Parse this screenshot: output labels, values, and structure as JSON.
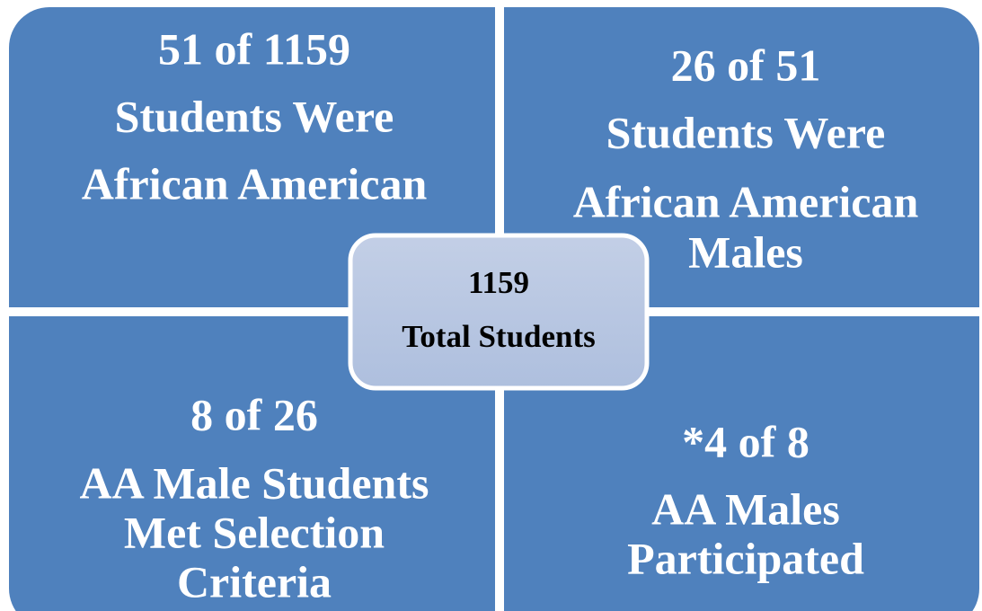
{
  "quadrants": [
    {
      "lines": [
        "51 of 1159",
        "Students Were",
        "African American"
      ]
    },
    {
      "lines": [
        "26 of 51",
        "Students Were",
        "African American",
        "Males"
      ]
    },
    {
      "lines": [
        "8 of 26",
        "AA Male Students",
        "Met Selection",
        "Criteria"
      ]
    },
    {
      "lines": [
        "*4 of 8",
        "AA Males",
        "Participated"
      ]
    }
  ],
  "center": {
    "lines": [
      "1159",
      "Total Students"
    ]
  }
}
